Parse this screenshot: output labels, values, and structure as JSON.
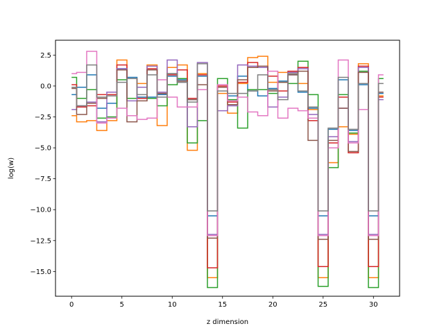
{
  "chart_data": {
    "type": "line",
    "step": "mid",
    "title": "",
    "xlabel": "z dimension",
    "ylabel": "log(w)",
    "xlim": [
      -1.6,
      32.6
    ],
    "ylim": [
      -17.0,
      3.7
    ],
    "xticks": [
      0,
      5,
      10,
      15,
      20,
      25,
      30
    ],
    "yticks": [
      2.5,
      0.0,
      -2.5,
      -5.0,
      -7.5,
      -10.0,
      -12.5,
      -15.0
    ],
    "ytick_labels": [
      "2.5",
      "0.0",
      "−2.5",
      "−5.0",
      "−7.5",
      "−10.0",
      "−12.5",
      "−15.0"
    ],
    "grid": false,
    "legend": "none",
    "x": [
      0,
      1,
      2,
      3,
      4,
      5,
      6,
      7,
      8,
      9,
      10,
      11,
      12,
      13,
      14,
      15,
      16,
      17,
      18,
      19,
      20,
      21,
      22,
      23,
      24,
      25,
      26,
      27,
      28,
      29,
      30,
      31
    ],
    "series": [
      {
        "color": "#1f77b4",
        "values": [
          -0.7,
          -0.1,
          0.9,
          -1.8,
          -1.4,
          1.4,
          0.7,
          -0.9,
          -0.9,
          -0.7,
          0.8,
          0.5,
          -1.1,
          0.8,
          -10.5,
          -0.1,
          -0.8,
          0.8,
          -0.4,
          -0.8,
          -0.2,
          0.4,
          0.9,
          -0.5,
          -1.8,
          -10.5,
          -3.5,
          0.5,
          -3.6,
          0.1,
          -10.5,
          -0.6
        ]
      },
      {
        "color": "#ff7f0e",
        "values": [
          -2.4,
          -2.9,
          -2.8,
          -3.6,
          -2.8,
          2.1,
          0.6,
          0.2,
          1.7,
          -3.2,
          1.5,
          1.7,
          -5.2,
          1.0,
          -15.5,
          -0.6,
          -2.2,
          0.2,
          2.3,
          2.4,
          0.3,
          1.1,
          1.1,
          0.2,
          -1.9,
          -15.5,
          -6.2,
          -3.3,
          -3.9,
          1.8,
          -15.5,
          -0.8
        ]
      },
      {
        "color": "#2ca02c",
        "values": [
          0.7,
          -1.0,
          -0.3,
          -2.6,
          -2.5,
          0.5,
          -1.0,
          -1.0,
          -1.0,
          -1.6,
          0.1,
          0.6,
          -4.6,
          -2.8,
          -16.3,
          0.6,
          -1.1,
          -3.4,
          -0.3,
          -0.3,
          -0.6,
          0.3,
          0.2,
          2.0,
          -0.7,
          -16.2,
          -6.6,
          -0.7,
          -3.8,
          1.2,
          -16.3,
          0.6
        ]
      },
      {
        "color": "#d62728",
        "values": [
          0.1,
          -1.7,
          -1.6,
          -0.7,
          -0.7,
          1.7,
          0.6,
          -1.0,
          1.4,
          -0.6,
          0.9,
          1.3,
          -1.0,
          0.9,
          -14.7,
          0.0,
          -1.3,
          0.3,
          1.9,
          1.5,
          0.8,
          -0.4,
          1.2,
          1.5,
          -2.8,
          -14.6,
          -4.6,
          -0.9,
          -5.4,
          1.6,
          -14.6,
          -0.9
        ]
      },
      {
        "color": "#9467bd",
        "values": [
          -1.9,
          -1.6,
          -1.3,
          -2.9,
          -0.5,
          1.4,
          -1.2,
          -0.1,
          1.6,
          -0.5,
          2.1,
          0.3,
          -3.3,
          1.9,
          -12.0,
          -2.0,
          -1.6,
          1.7,
          1.6,
          1.5,
          -1.7,
          -0.9,
          1.1,
          1.4,
          -2.3,
          -12.0,
          -4.1,
          -1.8,
          -4.5,
          1.5,
          -12.0,
          -1.1
        ]
      },
      {
        "color": "#8c564b",
        "values": [
          -0.2,
          -2.3,
          -1.4,
          -1.0,
          -0.8,
          1.3,
          -2.9,
          -1.2,
          1.3,
          -0.6,
          1.0,
          0.4,
          -1.1,
          0.1,
          -12.3,
          -0.1,
          -1.5,
          0.5,
          1.5,
          1.6,
          -0.4,
          0.3,
          0.9,
          1.2,
          -4.4,
          -12.4,
          -4.4,
          -1.8,
          -5.3,
          1.1,
          -12.4,
          -0.5
        ]
      },
      {
        "color": "#e377c2",
        "values": [
          1.0,
          1.1,
          2.8,
          -3.0,
          -2.6,
          -1.8,
          -2.4,
          -2.7,
          -2.6,
          0.5,
          -0.9,
          -1.7,
          -1.7,
          -0.3,
          -12.1,
          0.1,
          -1.2,
          -0.9,
          -2.1,
          -2.4,
          1.2,
          -2.6,
          -1.8,
          -2.0,
          -2.6,
          -12.1,
          -5.0,
          2.1,
          -4.6,
          -1.9,
          -12.1,
          0.9
        ]
      },
      {
        "color": "#7f7f7f",
        "values": [
          -0.1,
          -1.6,
          1.7,
          -0.9,
          -0.8,
          0.3,
          0.6,
          -0.7,
          0.9,
          -0.9,
          1.0,
          0.3,
          -1.3,
          1.8,
          -10.1,
          -0.4,
          -0.6,
          -0.6,
          -0.4,
          0.9,
          -0.3,
          -1.1,
          1.0,
          -0.4,
          -1.7,
          -10.1,
          -3.4,
          0.7,
          -3.5,
          0.2,
          -10.1,
          0.2
        ]
      }
    ]
  }
}
